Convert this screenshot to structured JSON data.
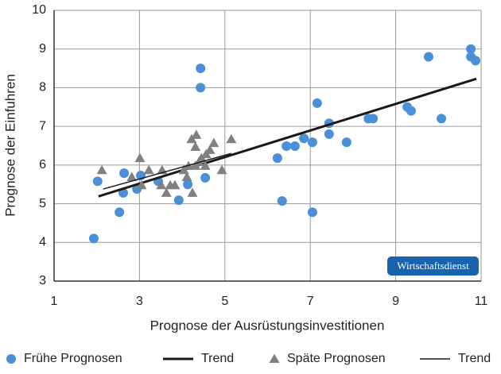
{
  "chart_data": {
    "type": "scatter",
    "x_label": "Prognose der Ausrüstungsinvestitionen",
    "y_label": "Prognose der Einfuhren",
    "xlim": [
      1,
      11
    ],
    "xticks": [
      1,
      3,
      5,
      7,
      9,
      11
    ],
    "ylim": [
      3,
      10
    ],
    "yticks": [
      3,
      4,
      5,
      6,
      7,
      8,
      9,
      10
    ],
    "grid": true,
    "legend": "bottom",
    "watermark": "Wirtschaftsdienst",
    "series": [
      {
        "name": "Frühe Prognosen",
        "color": "#4a8fd8",
        "marker": "circle",
        "x": [
          1.93,
          2.02,
          2.53,
          2.62,
          2.64,
          2.94,
          3.03,
          3.44,
          3.92,
          4.13,
          4.43,
          4.43,
          4.54,
          6.23,
          6.34,
          6.44,
          6.64,
          6.85,
          7.05,
          7.05,
          7.16,
          7.44,
          7.44,
          7.85,
          8.36,
          8.47,
          9.27,
          9.36,
          9.77,
          10.07,
          10.76,
          10.76,
          10.87
        ],
        "values": [
          4.1,
          5.58,
          4.78,
          5.28,
          5.79,
          5.38,
          5.73,
          5.58,
          5.09,
          5.5,
          8.5,
          8.0,
          5.67,
          6.18,
          5.07,
          6.49,
          6.49,
          6.69,
          6.59,
          4.78,
          7.6,
          7.08,
          6.8,
          6.59,
          7.2,
          7.2,
          7.5,
          7.4,
          8.8,
          7.2,
          9.0,
          8.8,
          8.7
        ],
        "trend": {
          "name": "Trend",
          "color": "#1a1a1a",
          "width": 3,
          "x": [
            2.04,
            10.89
          ],
          "y": [
            5.19,
            8.23
          ]
        }
      },
      {
        "name": "Späte Prognosen",
        "color": "#808080",
        "marker": "triangle",
        "x": [
          2.12,
          2.82,
          3.01,
          3.05,
          3.22,
          3.51,
          3.53,
          3.63,
          3.72,
          3.83,
          4.04,
          4.11,
          4.15,
          4.22,
          4.24,
          4.31,
          4.31,
          4.33,
          4.39,
          4.45,
          4.54,
          4.56,
          4.65,
          4.74,
          4.93,
          5.15
        ],
        "values": [
          5.87,
          5.69,
          6.18,
          5.48,
          5.87,
          5.48,
          5.87,
          5.28,
          5.48,
          5.48,
          5.87,
          5.69,
          5.98,
          6.67,
          5.28,
          5.98,
          6.47,
          6.78,
          6.08,
          6.18,
          5.98,
          6.28,
          6.39,
          6.57,
          5.87,
          6.67
        ],
        "trend": {
          "name": "Trend",
          "color": "#1a1a1a",
          "width": 1.5,
          "x": [
            2.15,
            5.15
          ],
          "y": [
            5.38,
            6.3
          ]
        }
      }
    ]
  }
}
